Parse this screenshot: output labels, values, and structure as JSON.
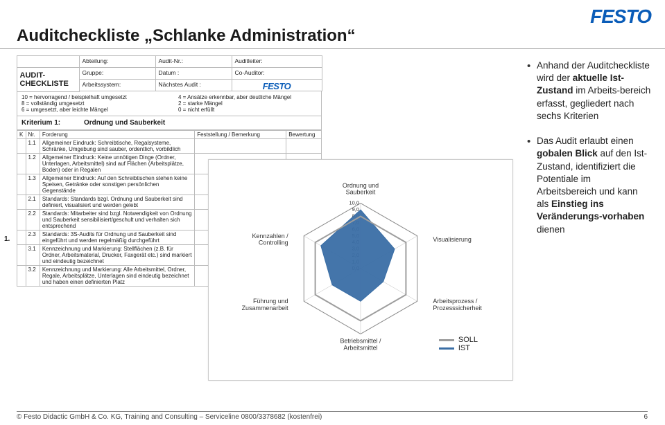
{
  "brand": {
    "name": "FESTO",
    "color": "#0a5cb8"
  },
  "title": "Auditcheckliste „Schlanke Administration“",
  "form": {
    "audit_label": "AUDIT-CHECKLISTE",
    "rows": [
      [
        "",
        "Abteilung:",
        "Audit-Nr.:",
        "Auditleiter:"
      ],
      [
        "",
        "Gruppe:",
        "Datum :",
        "Co-Auditor:"
      ],
      [
        "",
        "Arbeitssystem:",
        "Nächstes Audit :",
        ""
      ]
    ],
    "legend_left": [
      "10 = hervorragend / beispielhaft umgesetzt",
      "8 = vollständig umgesetzt",
      "6 = umgesetzt, aber leichte Mängel"
    ],
    "legend_right": [
      "4 = Ansätze erkennbar, aber deutliche Mängel",
      "2 = starke Mängel",
      "0 = nicht erfüllt"
    ]
  },
  "criterion": {
    "number_label": "Kriterium 1:",
    "title": "Ordnung und Sauberkeit",
    "columns": [
      "K",
      "Nr.",
      "Forderung",
      "Feststellung / Bemerkung",
      "Bewertung"
    ],
    "rows": [
      {
        "nr": "1.1",
        "text": "Allgemeiner Eindruck: Schreibtische, Regalsysteme, Schränke, Umgebung sind sauber, ordentlich, vorbildlich"
      },
      {
        "nr": "1.2",
        "text": "Allgemeiner Eindruck: Keine unnötigen Dinge (Ordner, Unterlagen, Arbeitsmittel) sind auf Flächen (Arbeitsplätze, Boden) oder in Regalen"
      },
      {
        "nr": "1.3",
        "text": "Allgemeiner Eindruck: Auf den Schreibtischen stehen keine Speisen, Getränke oder sonstigen persönlichen Gegenstände"
      },
      {
        "nr": "2.1",
        "text": "Standards: Standards bzgl. Ordnung und Sauberkeit sind definiert, visualisiert und werden gelebt"
      },
      {
        "nr": "2.2",
        "text": "Standards: Mitarbeiter sind bzgl. Notwendigkeit von Ordnung und Sauberkeit sensibilisiert/geschult und verhalten sich entsprechend"
      },
      {
        "nr": "2.3",
        "text": "Standards: 3S-Audits für Ordnung und Sauberkeit sind eingeführt und werden regelmäßig durchgeführt"
      },
      {
        "nr": "3.1",
        "text": "Kennzeichnung und Markierung: Stellflächen (z.B. für Ordner, Arbeitsmaterial, Drucker, Faxgerät etc.) sind markiert und eindeutig bezeichnet"
      },
      {
        "nr": "3.2",
        "text": "Kennzeichnung und Markierung: Alle Arbeitsmittel, Ordner, Regale, Arbeitsplätze, Unterlagen sind eindeutig bezeichnet und haben einen definierten Platz"
      }
    ],
    "side_number": "1."
  },
  "radar": {
    "type": "radar",
    "axes": [
      "Ordnung und Sauberkeit",
      "Visualisierung",
      "Arbeitsprozess / Prozesssicherheit",
      "Betriebsmittel / Arbeitsmittel",
      "Führung und Zusammenarbeit",
      "Kennzahlen / Controlling"
    ],
    "ticks": [
      0.0,
      1.0,
      2.0,
      3.0,
      4.0,
      5.0,
      6.0,
      7.0,
      8.0,
      9.0,
      10.0
    ],
    "max": 10,
    "series": {
      "SOLL": {
        "color": "#9e9e9e",
        "width": 2,
        "values": [
          8,
          8,
          8,
          8,
          8,
          8
        ]
      },
      "IST": {
        "color": "#3a6ea5",
        "fill": "#3a6ea5",
        "width": 1,
        "values": [
          9,
          6,
          4,
          5,
          5,
          7
        ]
      }
    },
    "grid_color": "#e0e0e0",
    "label_fontsize": 9,
    "tick_fontsize": 7.5,
    "background": "#ffffff",
    "legend_labels": {
      "soll": "SOLL",
      "ist": "IST"
    }
  },
  "bullets": [
    {
      "pre": "Anhand der Auditcheckliste wird der ",
      "b1": "aktuelle Ist-Zustand",
      "mid": " im Arbeits-bereich erfasst, gegliedert nach sechs Kriterien"
    },
    {
      "pre": "Das Audit erlaubt einen ",
      "b1": "gobalen Blick",
      "mid": " auf den Ist-Zustand, identifiziert die Potentiale im Arbeitsbereich und kann als ",
      "b2": "Einstieg ins Veränderungs-vorhaben",
      "post": " dienen"
    }
  ],
  "footer": "© Festo Didactic GmbH & Co. KG, Training and Consulting – Serviceline 0800/3378682 (kostenfrei)",
  "page_number": "6"
}
